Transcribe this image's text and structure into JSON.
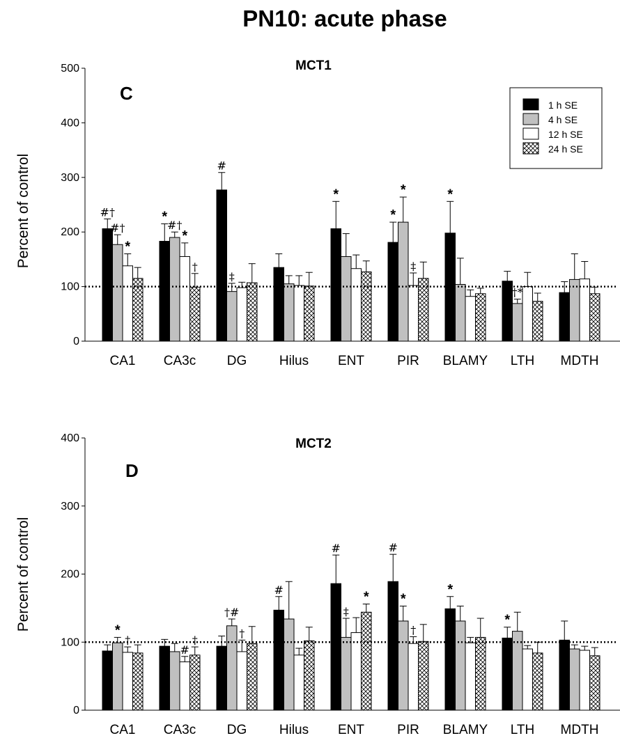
{
  "figure": {
    "title": "PN10: acute phase"
  },
  "legend": {
    "entries": [
      "1 h SE",
      "4 h SE",
      "12 h SE",
      "24 h SE"
    ],
    "placement": "top-right"
  },
  "colors": {
    "series_1h": "#000000",
    "series_4h": "#c0c0c0",
    "series_12h": "#ffffff",
    "series_24h": "crosshatch",
    "outline": "#000000",
    "reference_line": "#000000"
  },
  "chart_data": [
    {
      "type": "bar",
      "title": "MCT1",
      "panel_label": "C",
      "ylabel": "Percent of control",
      "ylim": [
        0,
        500
      ],
      "yticks": [
        0,
        100,
        200,
        300,
        400,
        500
      ],
      "reference_line": 100,
      "categories": [
        "CA1",
        "CA3c",
        "DG",
        "Hilus",
        "ENT",
        "PIR",
        "BLAMY",
        "LTH",
        "MDTH"
      ],
      "series": [
        {
          "name": "1 h SE",
          "values": [
            206,
            183,
            277,
            135,
            206,
            181,
            198,
            110,
            89
          ],
          "errors": [
            18,
            32,
            32,
            25,
            50,
            37,
            58,
            18,
            20
          ],
          "annotations": [
            "#†",
            "*",
            "#",
            "",
            "*",
            "*",
            "*",
            "",
            ""
          ]
        },
        {
          "name": "4 h SE",
          "values": [
            177,
            190,
            91,
            105,
            155,
            218,
            104,
            69,
            113
          ],
          "errors": [
            18,
            10,
            15,
            15,
            42,
            46,
            48,
            8,
            47
          ],
          "annotations": [
            "#†",
            "#†",
            "‡",
            "",
            "",
            "*",
            "",
            "†*",
            ""
          ]
        },
        {
          "name": "12 h SE",
          "values": [
            138,
            155,
            98,
            102,
            133,
            102,
            82,
            100,
            114
          ],
          "errors": [
            22,
            25,
            10,
            18,
            25,
            23,
            12,
            26,
            32
          ],
          "annotations": [
            "*",
            "*",
            "",
            "",
            "",
            "‡",
            "",
            "",
            ""
          ]
        },
        {
          "name": "24 h SE",
          "values": [
            115,
            99,
            107,
            101,
            127,
            115,
            87,
            73,
            87
          ],
          "errors": [
            20,
            25,
            35,
            25,
            20,
            30,
            10,
            15,
            12
          ],
          "annotations": [
            "",
            "†",
            "",
            "",
            "",
            "",
            "",
            "",
            ""
          ]
        }
      ]
    },
    {
      "type": "bar",
      "title": "MCT2",
      "panel_label": "D",
      "ylabel": "Percent of control",
      "ylim": [
        0,
        400
      ],
      "yticks": [
        0,
        100,
        200,
        300,
        400
      ],
      "reference_line": 100,
      "categories": [
        "CA1",
        "CA3c",
        "DG",
        "Hilus",
        "ENT",
        "PIR",
        "BLAMY",
        "LTH",
        "MDTH"
      ],
      "series": [
        {
          "name": "1 h SE",
          "values": [
            87,
            94,
            94,
            147,
            186,
            189,
            149,
            106,
            103
          ],
          "errors": [
            9,
            10,
            15,
            20,
            42,
            40,
            18,
            16,
            28
          ],
          "annotations": [
            "",
            "",
            "",
            "#",
            "#",
            "#",
            "*",
            "*",
            ""
          ]
        },
        {
          "name": "4 h SE",
          "values": [
            99,
            86,
            124,
            134,
            107,
            131,
            131,
            116,
            90
          ],
          "errors": [
            8,
            12,
            10,
            55,
            28,
            22,
            22,
            28,
            6
          ],
          "annotations": [
            "*",
            "",
            "†#",
            "",
            "‡",
            "*",
            "",
            "",
            ""
          ]
        },
        {
          "name": "12 h SE",
          "values": [
            85,
            71,
            86,
            81,
            114,
            98,
            99,
            90,
            88
          ],
          "errors": [
            8,
            8,
            17,
            10,
            22,
            10,
            8,
            5,
            6
          ],
          "annotations": [
            "†",
            "#",
            "†",
            "",
            "",
            "†",
            "",
            "",
            ""
          ]
        },
        {
          "name": "24 h SE",
          "values": [
            84,
            81,
            98,
            102,
            144,
            101,
            107,
            84,
            80
          ],
          "errors": [
            12,
            12,
            25,
            20,
            12,
            25,
            28,
            16,
            12
          ],
          "annotations": [
            "",
            "†",
            "",
            "",
            "*",
            "",
            "",
            "",
            ""
          ]
        }
      ]
    }
  ]
}
